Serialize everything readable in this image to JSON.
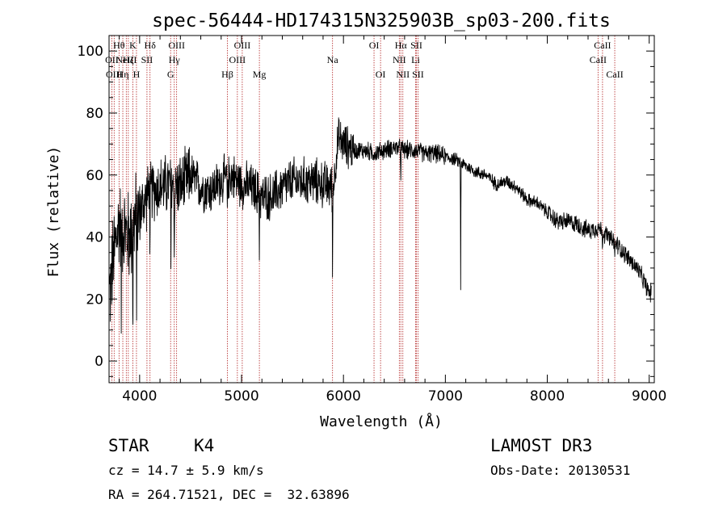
{
  "chart_data": {
    "type": "line",
    "title": "spec-56444-HD174315N325903B_sp03-200.fits",
    "xlabel": "Wavelength (Å)",
    "ylabel": "Flux (relative)",
    "xlim": [
      3700,
      9050
    ],
    "ylim": [
      -7,
      105
    ],
    "xticks": [
      4000,
      5000,
      6000,
      7000,
      8000,
      9000
    ],
    "yticks": [
      0,
      20,
      40,
      60,
      80,
      100
    ],
    "continuum": {
      "x": [
        3700,
        3750,
        3800,
        3850,
        3900,
        3950,
        4000,
        4100,
        4200,
        4300,
        4400,
        4500,
        4600,
        4700,
        4800,
        4900,
        5000,
        5100,
        5200,
        5300,
        5400,
        5500,
        5600,
        5700,
        5800,
        5900,
        5950,
        6000,
        6100,
        6200,
        6300,
        6400,
        6500,
        6600,
        6700,
        6800,
        6900,
        7000,
        7100,
        7200,
        7300,
        7400,
        7500,
        7600,
        7700,
        7800,
        7900,
        8000,
        8100,
        8200,
        8300,
        8400,
        8500,
        8600,
        8700,
        8800,
        8900,
        9000
      ],
      "y": [
        20,
        35,
        45,
        42,
        40,
        45,
        48,
        55,
        56,
        57,
        56,
        60,
        56,
        55,
        58,
        60,
        57,
        56,
        53,
        53,
        56,
        58,
        58,
        58,
        57,
        56,
        72,
        70,
        68,
        68,
        67,
        68,
        69,
        68,
        68,
        67,
        67,
        66,
        65,
        63,
        61,
        60,
        57,
        58,
        56,
        52,
        51,
        48,
        45,
        45,
        44,
        42,
        43,
        40,
        37,
        33,
        29,
        22
      ]
    },
    "features": [
      {
        "wavelength": 3820,
        "depth": 28
      },
      {
        "wavelength": 3934,
        "depth": 35
      },
      {
        "wavelength": 3969,
        "depth": 30
      },
      {
        "wavelength": 4102,
        "depth": 22
      },
      {
        "wavelength": 4307,
        "depth": 30
      },
      {
        "wavelength": 4340,
        "depth": 25
      },
      {
        "wavelength": 4861,
        "depth": 15
      },
      {
        "wavelength": 5175,
        "depth": 18
      },
      {
        "wavelength": 5893,
        "depth": 32
      },
      {
        "wavelength": 6563,
        "depth": 10
      },
      {
        "wavelength": 7150,
        "depth": 40
      },
      {
        "wavelength": 8542,
        "depth": 6
      },
      {
        "wavelength": 8662,
        "depth": 6
      }
    ],
    "lines": [
      {
        "wavelength": 3727,
        "label": "OII",
        "row": 1
      },
      {
        "wavelength": 3750,
        "label": "OIII",
        "row": 2
      },
      {
        "wavelength": 3798,
        "label": "Hθ",
        "row": 0
      },
      {
        "wavelength": 3835,
        "label": "Hη",
        "row": 2
      },
      {
        "wavelength": 3869,
        "label": "NeIII",
        "row": 1
      },
      {
        "wavelength": 3889,
        "label": "Hζ",
        "row": 1
      },
      {
        "wavelength": 3934,
        "label": "K",
        "row": 0
      },
      {
        "wavelength": 3969,
        "label": "H",
        "row": 2
      },
      {
        "wavelength": 4072,
        "label": "SII",
        "row": 1
      },
      {
        "wavelength": 4102,
        "label": "Hδ",
        "row": 0
      },
      {
        "wavelength": 4304,
        "label": "G",
        "row": 2
      },
      {
        "wavelength": 4340,
        "label": "Hγ",
        "row": 1
      },
      {
        "wavelength": 4363,
        "label": "OIII",
        "row": 0
      },
      {
        "wavelength": 4861,
        "label": "Hβ",
        "row": 2
      },
      {
        "wavelength": 4959,
        "label": "OIII",
        "row": 1
      },
      {
        "wavelength": 5007,
        "label": "OIII",
        "row": 0
      },
      {
        "wavelength": 5175,
        "label": "Mg",
        "row": 2
      },
      {
        "wavelength": 5893,
        "label": "Na",
        "row": 1
      },
      {
        "wavelength": 6300,
        "label": "OI",
        "row": 0
      },
      {
        "wavelength": 6364,
        "label": "OI",
        "row": 2
      },
      {
        "wavelength": 6548,
        "label": "NII",
        "row": 1
      },
      {
        "wavelength": 6563,
        "label": "Hα",
        "row": 0
      },
      {
        "wavelength": 6583,
        "label": "NII",
        "row": 2
      },
      {
        "wavelength": 6708,
        "label": "Li",
        "row": 1
      },
      {
        "wavelength": 6716,
        "label": "SII",
        "row": 0
      },
      {
        "wavelength": 6731,
        "label": "SII",
        "row": 2
      },
      {
        "wavelength": 8498,
        "label": "CaII",
        "row": 1
      },
      {
        "wavelength": 8542,
        "label": "CaII",
        "row": 0
      },
      {
        "wavelength": 8662,
        "label": "CaII",
        "row": 2
      }
    ],
    "line_color": "#b22222",
    "spectrum_color": "#000000"
  },
  "info": {
    "object_type": "STAR",
    "subclass": "K4",
    "survey": "LAMOST DR3",
    "redshift": "cz = 14.7 ± 5.9 km/s",
    "obs_date": "Obs-Date: 20130531",
    "coords": "RA = 264.71521, DEC =  32.63896"
  }
}
